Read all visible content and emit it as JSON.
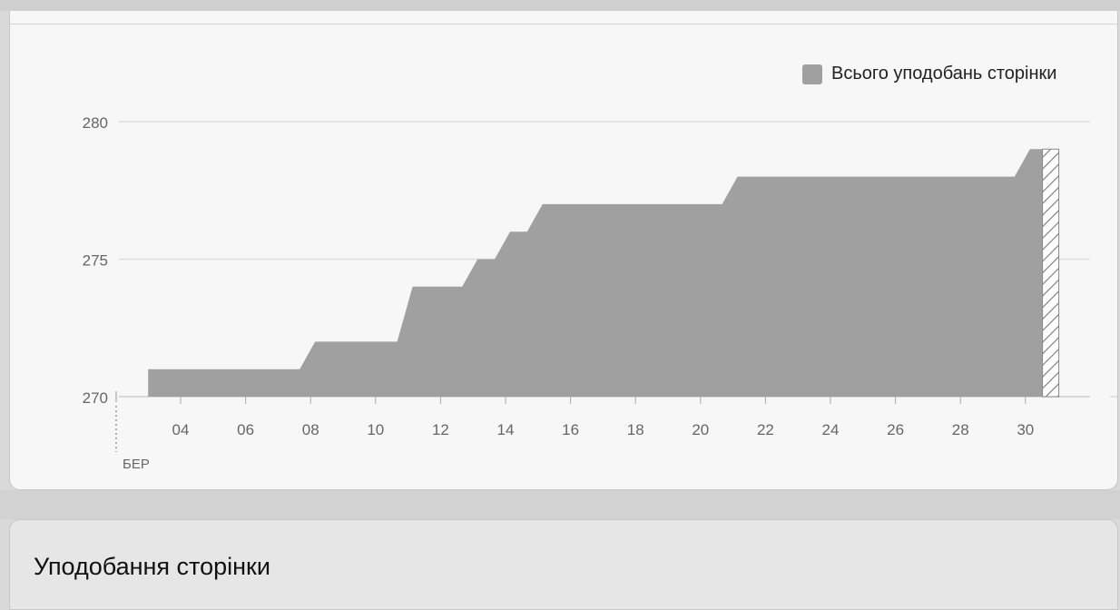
{
  "chart_data": {
    "type": "area",
    "legend": {
      "label": "Всього уподобань сторінки",
      "position": "top-right"
    },
    "y_ticks": [
      "270",
      "275",
      "280"
    ],
    "ylim": [
      270,
      280.5
    ],
    "x_tick_labels": [
      "04",
      "06",
      "08",
      "10",
      "12",
      "14",
      "16",
      "18",
      "20",
      "22",
      "24",
      "26",
      "28",
      "30"
    ],
    "x_month_label": "БЕР",
    "grid": true,
    "series": [
      {
        "name": "Всього уподобань сторінки",
        "x": [
          3,
          4,
          5,
          6,
          7,
          8,
          9,
          10,
          11,
          12,
          13,
          14,
          15,
          16,
          17,
          18,
          19,
          20,
          21,
          22,
          23,
          24,
          25,
          26,
          27,
          28,
          29,
          30,
          31
        ],
        "values": [
          271,
          271,
          271,
          271,
          271,
          272,
          272,
          272,
          274,
          274,
          275,
          276,
          277,
          277,
          277,
          277,
          277,
          277,
          278,
          278,
          278,
          278,
          278,
          278,
          278,
          278,
          278,
          279,
          279
        ],
        "partial_last_segment": true,
        "color": "#a0a0a0"
      }
    ]
  },
  "section": {
    "title": "Уподобання сторінки"
  }
}
